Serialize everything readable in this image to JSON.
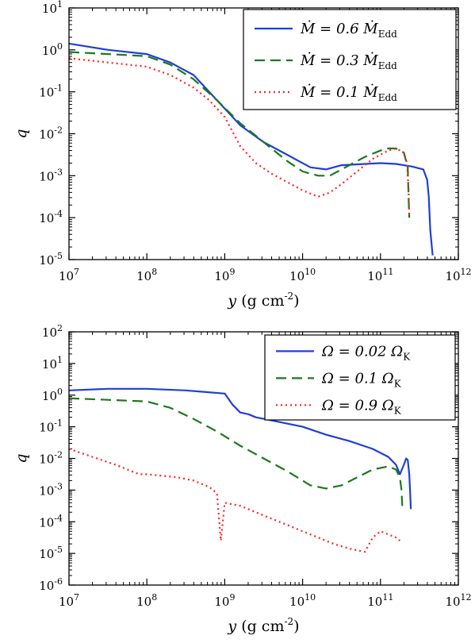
{
  "chart_data": [
    {
      "type": "line",
      "xlabel": "y (g cm^-2)",
      "ylabel": "q",
      "xscale": "log",
      "yscale": "log",
      "xlim": [
        10000000.0,
        1000000000000.0
      ],
      "ylim": [
        1e-05,
        10
      ],
      "x_ticks": [
        7,
        8,
        9,
        10,
        11,
        12
      ],
      "y_ticks": [
        -5,
        -4,
        -3,
        -2,
        -1,
        0,
        1
      ],
      "x_tick_labels": [
        "10^7",
        "10^8",
        "10^9",
        "10^10",
        "10^11",
        "10^12"
      ],
      "y_tick_labels": [
        "10^-5",
        "10^-4",
        "10^-3",
        "10^-2",
        "10^-1",
        "10^0",
        "10^1"
      ],
      "legend_position": "top-right",
      "series": [
        {
          "name": "Ṁ = 0.6 Ṁ_Edd",
          "color": "#1f3fd8",
          "dash": "solid",
          "x": [
            7.0,
            7.5,
            8.0,
            8.3,
            8.6,
            8.9,
            9.2,
            9.5,
            9.8,
            10.1,
            10.3,
            10.5,
            10.8,
            11.0,
            11.2,
            11.4,
            11.55,
            11.6,
            11.62,
            11.64,
            11.67
          ],
          "y": [
            0.15,
            0.0,
            -0.1,
            -0.3,
            -0.6,
            -1.2,
            -1.8,
            -2.2,
            -2.5,
            -2.8,
            -2.85,
            -2.75,
            -2.72,
            -2.7,
            -2.72,
            -2.78,
            -2.85,
            -3.1,
            -3.5,
            -4.3,
            -4.9
          ]
        },
        {
          "name": "Ṁ = 0.3 Ṁ_Edd",
          "color": "#1a7a1a",
          "dash": "dashed",
          "x": [
            7.0,
            7.5,
            8.0,
            8.3,
            8.6,
            8.9,
            9.2,
            9.4,
            9.6,
            9.8,
            10.0,
            10.2,
            10.35,
            10.45,
            10.6,
            10.8,
            11.0,
            11.1,
            11.2,
            11.3,
            11.35,
            11.36,
            11.37
          ],
          "y": [
            -0.05,
            -0.1,
            -0.15,
            -0.35,
            -0.7,
            -1.2,
            -1.75,
            -2.05,
            -2.35,
            -2.65,
            -2.9,
            -3.0,
            -3.0,
            -2.9,
            -2.75,
            -2.55,
            -2.4,
            -2.35,
            -2.35,
            -2.45,
            -2.8,
            -3.5,
            -4.0
          ]
        },
        {
          "name": "Ṁ = 0.1 Ṁ_Edd",
          "color": "#ff2020",
          "dash": "dotted",
          "x": [
            7.0,
            7.5,
            8.0,
            8.3,
            8.6,
            8.8,
            9.0,
            9.2,
            9.4,
            9.6,
            9.8,
            10.0,
            10.2,
            10.35,
            10.5,
            10.7,
            10.9,
            11.1,
            11.2,
            11.3,
            11.34,
            11.36,
            11.37
          ],
          "y": [
            -0.2,
            -0.3,
            -0.4,
            -0.6,
            -0.9,
            -1.2,
            -1.6,
            -2.3,
            -2.7,
            -2.95,
            -3.15,
            -3.35,
            -3.5,
            -3.4,
            -3.2,
            -2.9,
            -2.6,
            -2.4,
            -2.35,
            -2.45,
            -2.7,
            -3.3,
            -4.0
          ]
        }
      ]
    },
    {
      "type": "line",
      "xlabel": "y (g cm^-2)",
      "ylabel": "q",
      "xscale": "log",
      "yscale": "log",
      "xlim": [
        10000000.0,
        1000000000000.0
      ],
      "ylim": [
        1e-06,
        100
      ],
      "x_ticks": [
        7,
        8,
        9,
        10,
        11,
        12
      ],
      "y_ticks": [
        -6,
        -5,
        -4,
        -3,
        -2,
        -1,
        0,
        1,
        2
      ],
      "x_tick_labels": [
        "10^7",
        "10^8",
        "10^9",
        "10^10",
        "10^11",
        "10^12"
      ],
      "y_tick_labels": [
        "10^-6",
        "10^-5",
        "10^-4",
        "10^-3",
        "10^-2",
        "10^-1",
        "10^0",
        "10^1",
        "10^2"
      ],
      "legend_position": "top-right",
      "series": [
        {
          "name": "Ω = 0.02 Ω_K",
          "color": "#1f3fd8",
          "dash": "solid",
          "x": [
            7.0,
            7.5,
            8.0,
            8.5,
            9.0,
            9.1,
            9.2,
            9.3,
            9.4,
            9.6,
            9.8,
            10.0,
            10.3,
            10.6,
            10.9,
            11.1,
            11.2,
            11.25,
            11.3,
            11.33,
            11.35,
            11.37,
            11.38,
            11.39
          ],
          "y": [
            0.15,
            0.2,
            0.2,
            0.15,
            0.05,
            -0.3,
            -0.55,
            -0.6,
            -0.7,
            -0.8,
            -0.9,
            -1.0,
            -1.25,
            -1.45,
            -1.7,
            -1.95,
            -2.2,
            -2.5,
            -2.2,
            -2.0,
            -2.05,
            -2.5,
            -3.0,
            -3.6
          ]
        },
        {
          "name": "Ω = 0.1 Ω_K",
          "color": "#1a7a1a",
          "dash": "dashed",
          "x": [
            7.0,
            7.5,
            8.0,
            8.3,
            8.6,
            8.9,
            9.2,
            9.5,
            9.8,
            10.1,
            10.3,
            10.5,
            10.7,
            10.9,
            11.1,
            11.2,
            11.25,
            11.27,
            11.28
          ],
          "y": [
            -0.1,
            -0.15,
            -0.2,
            -0.4,
            -0.75,
            -1.15,
            -1.6,
            -2.0,
            -2.4,
            -2.85,
            -2.95,
            -2.85,
            -2.6,
            -2.35,
            -2.25,
            -2.35,
            -2.6,
            -3.0,
            -3.5
          ]
        },
        {
          "name": "Ω = 0.9 Ω_K",
          "color": "#ff2020",
          "dash": "dotted",
          "x": [
            7.0,
            7.3,
            7.6,
            7.8,
            7.9,
            8.0,
            8.2,
            8.4,
            8.6,
            8.8,
            8.9,
            8.95,
            9.0,
            9.2,
            9.4,
            9.6,
            9.7,
            9.8,
            10.0,
            10.2,
            10.4,
            10.6,
            10.8,
            10.9,
            11.0,
            11.1,
            11.2,
            11.25
          ],
          "y": [
            -1.7,
            -1.95,
            -2.2,
            -2.4,
            -2.5,
            -2.5,
            -2.55,
            -2.6,
            -2.7,
            -2.9,
            -3.1,
            -4.6,
            -3.4,
            -3.5,
            -3.7,
            -3.9,
            -4.0,
            -4.1,
            -4.3,
            -4.5,
            -4.7,
            -4.85,
            -4.95,
            -4.5,
            -4.3,
            -4.4,
            -4.5,
            -4.6
          ]
        }
      ]
    }
  ]
}
